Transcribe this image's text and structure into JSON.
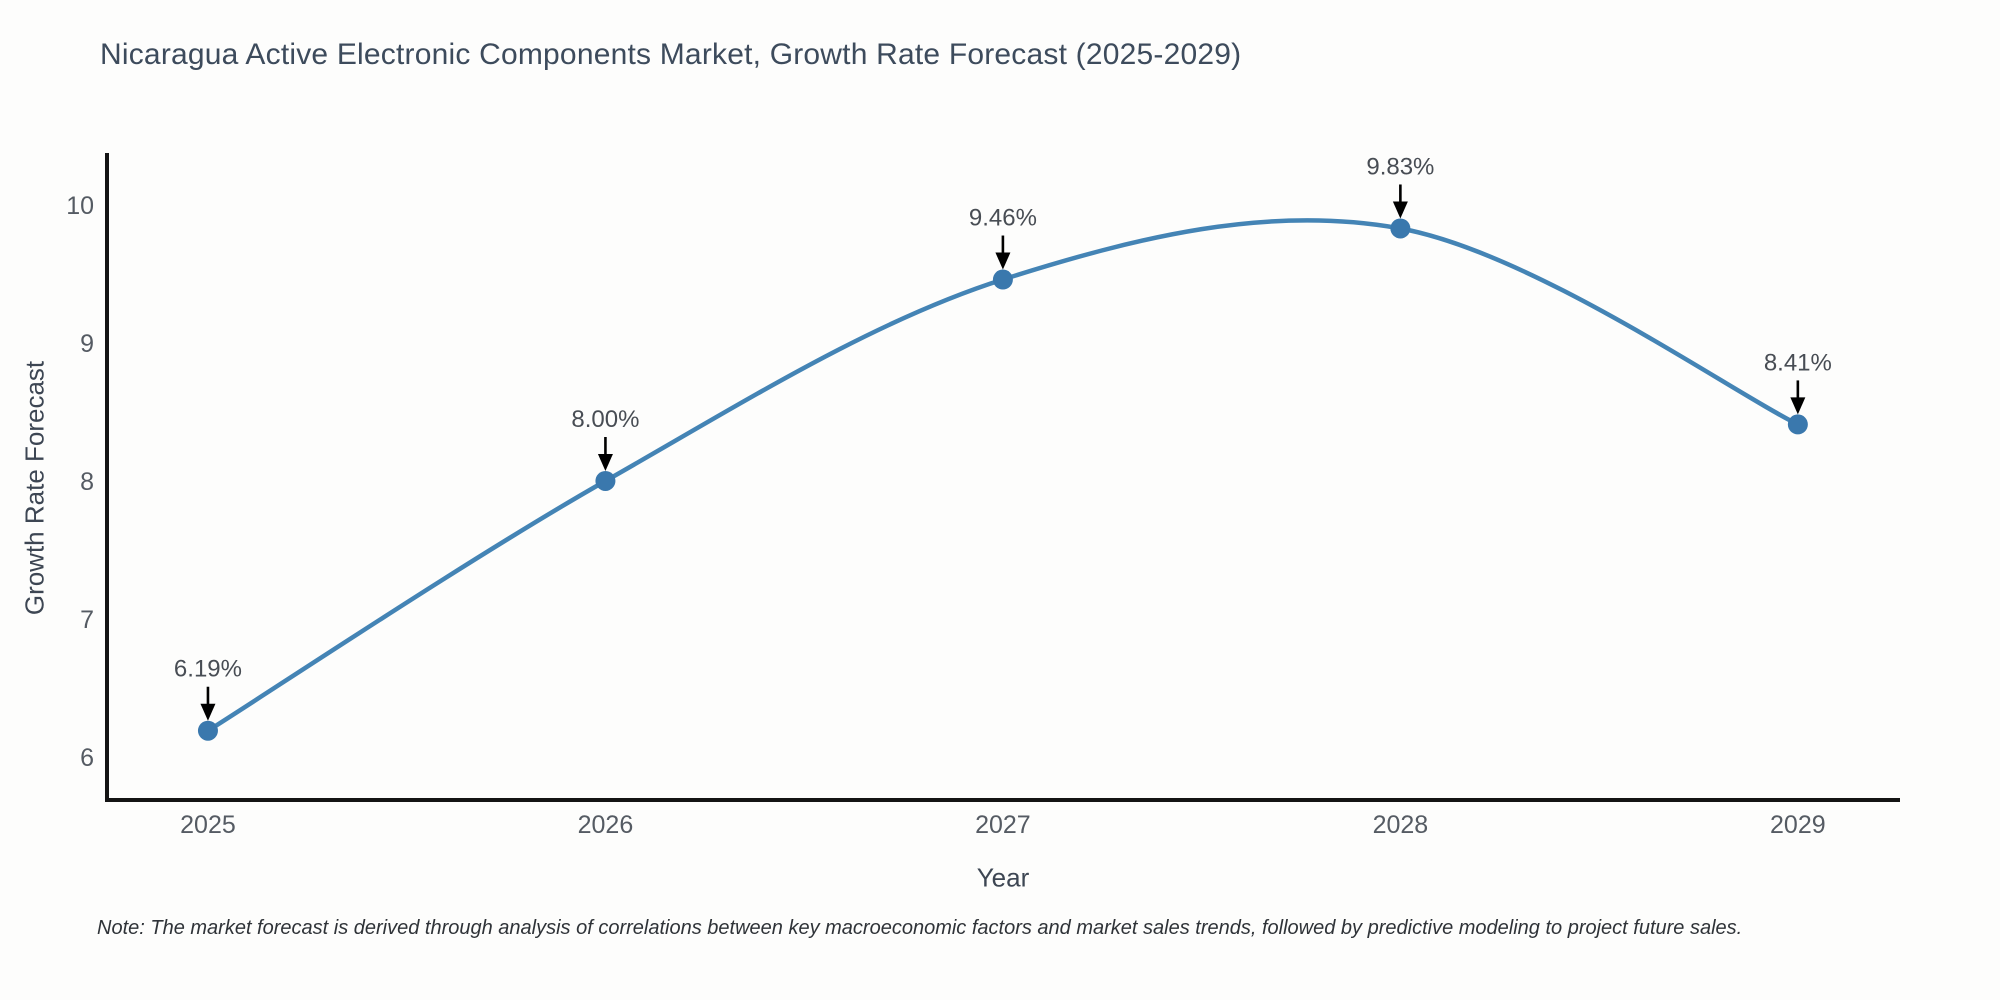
{
  "chart_data": {
    "type": "line",
    "title": "Nicaragua Active Electronic Components Market, Growth Rate Forecast (2025-2029)",
    "xlabel": "Year",
    "ylabel": "Growth Rate Forecast",
    "x": [
      2025,
      2026,
      2027,
      2028,
      2029
    ],
    "y": [
      6.19,
      8.0,
      9.46,
      9.83,
      8.41
    ],
    "point_labels": [
      "6.19%",
      "8.00%",
      "9.46%",
      "9.83%",
      "8.41%"
    ],
    "xticks": [
      "2025",
      "2026",
      "2027",
      "2028",
      "2029"
    ],
    "yticks": [
      "6",
      "7",
      "8",
      "9",
      "10"
    ],
    "ytick_values": [
      6,
      7,
      8,
      9,
      10
    ],
    "xtick_values": [
      2025,
      2026,
      2027,
      2028,
      2029
    ],
    "xlim": [
      2024.746,
      2029.257
    ],
    "ylim": [
      5.688,
      10.377
    ],
    "line_shape": "spline",
    "grid": false,
    "legend_visible": false,
    "colors": {
      "line": "#4484b5",
      "marker": "#3a78ad",
      "axis_line": "#141414",
      "tick_label": "#555b63",
      "annotation_text": "#484d54",
      "annotation_arrow": "#000000",
      "background": "#fdfdfc"
    },
    "note": "Note: The market forecast is derived through analysis of correlations between key macroeconomic factors and market sales trends, followed by predictive modeling to project future sales."
  }
}
